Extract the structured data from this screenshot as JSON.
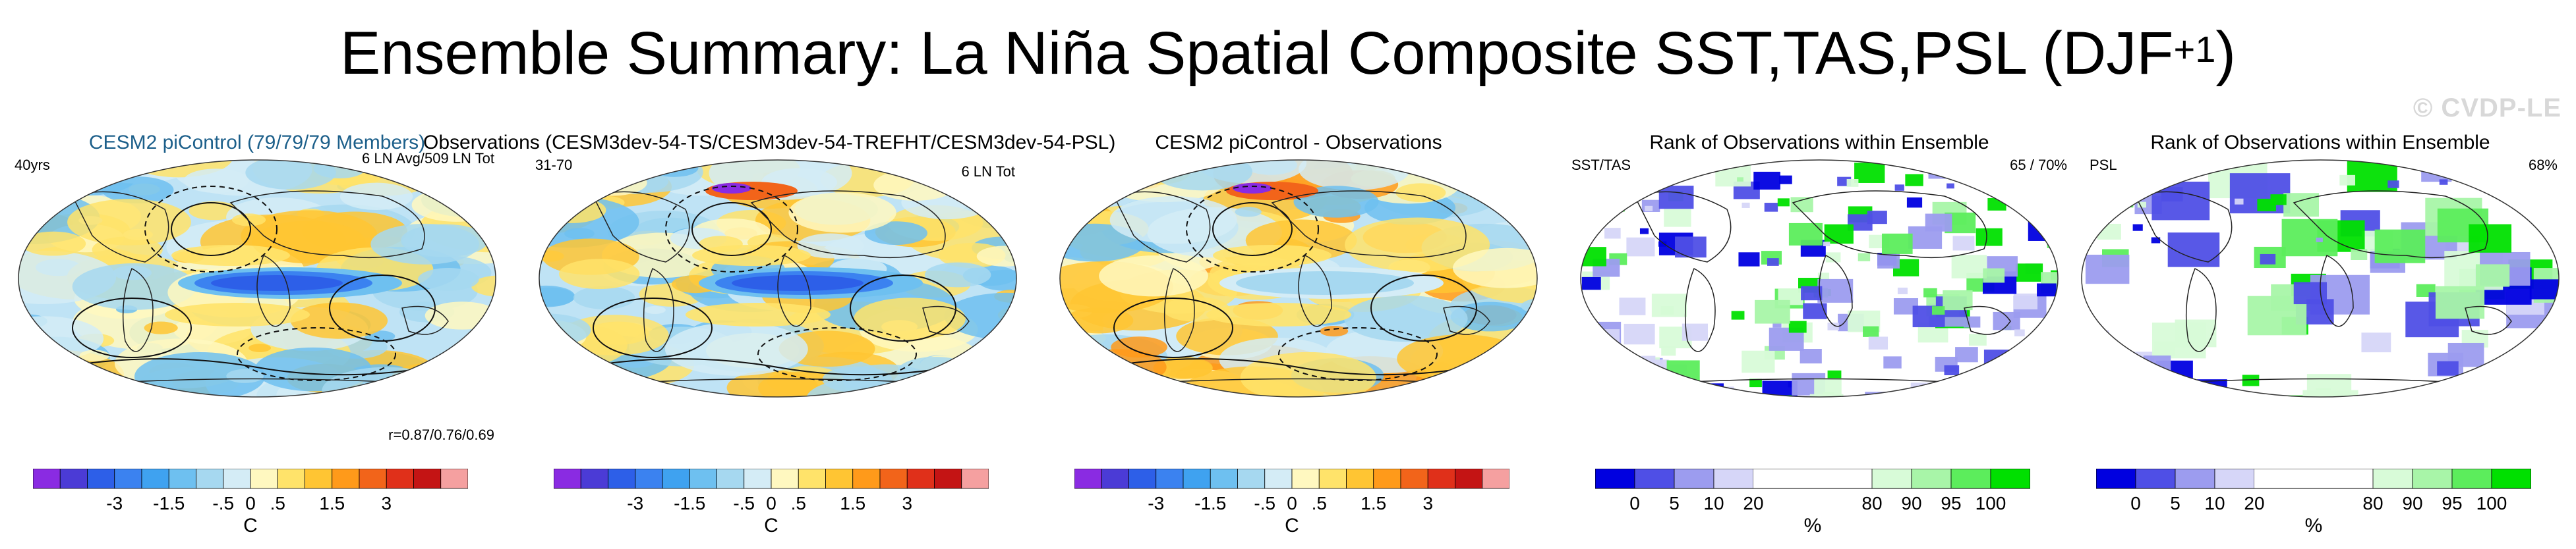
{
  "title": {
    "main": "Ensemble Summary: La Niña Spatial Composite SST,TAS,PSL (DJF",
    "sup": "+1",
    "close": ")"
  },
  "watermark": "© CVDP-LE",
  "panels": [
    {
      "title": "CESM2 piControl (79/79/79 Members)",
      "left_label": "40yrs",
      "right_label": "6 LN Avg/509 LN Tot",
      "bottom_label": "r=0.87/0.76/0.69",
      "kind": "model"
    },
    {
      "title": "Observations (CESM3dev-54-TS/CESM3dev-54-TREFHT/CESM3dev-54-PSL)",
      "left_label": "31-70",
      "right_label": "6 LN Tot",
      "kind": "obs"
    },
    {
      "title": "CESM2 piControl - Observations",
      "kind": "diff"
    },
    {
      "title": "Rank of Observations within Ensemble",
      "left_label": "SST/TAS",
      "right_label": "65 /  70%",
      "kind": "rank1"
    },
    {
      "title": "Rank of Observations within Ensemble",
      "left_label": "PSL",
      "right_label": "68%",
      "kind": "rank2"
    }
  ],
  "temp_colorbar": {
    "colors": [
      "#8a2be2",
      "#4b3bd6",
      "#2d5fe8",
      "#3b82f0",
      "#3fa2f0",
      "#6ec0f0",
      "#a6d8f0",
      "#d4ecf6",
      "#fff8c0",
      "#ffe36a",
      "#ffc533",
      "#ff9a1a",
      "#f2641a",
      "#e0301a",
      "#c41414",
      "#f5a0a0"
    ],
    "tick_labels": [
      "-3",
      "-1.5",
      "-.5",
      "0",
      ".5",
      "1.5",
      "3"
    ],
    "unit": "C"
  },
  "rank_colorbar": {
    "colors": [
      "#0000e0",
      "#4f4fe6",
      "#9c9cef",
      "#d6d6f8",
      "#ffffff",
      "#ffffff",
      "#ffffff",
      "#d8fbd8",
      "#a8f5a8",
      "#5ced5c",
      "#00e000"
    ],
    "tick_labels": [
      "0",
      "5",
      "10",
      "20",
      "80",
      "90",
      "95",
      "100"
    ],
    "unit": "%"
  }
}
